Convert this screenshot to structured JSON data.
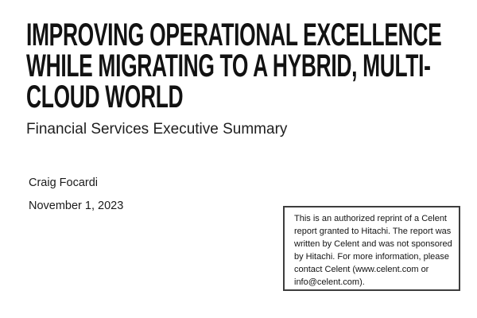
{
  "document": {
    "title": "IMPROVING OPERATIONAL EXCELLENCE WHILE MIGRATING TO A HYBRID, MULTI-CLOUD WORLD",
    "title_lines": "IMPROVING OPERATIONAL EXCELLENCE\nWHILE MIGRATING TO A HYBRID, MULTI-\nCLOUD WORLD",
    "subtitle": "Financial Services Executive Summary",
    "author": "Craig Focardi",
    "date": "November 1, 2023"
  },
  "reprint_box": {
    "text": "This is an authorized reprint of a Celent\nreport granted to Hitachi. The report was\nwritten by Celent and was not sponsored\nby Hitachi. For more information, please\ncontact Celent (www.celent.com or\ninfo@celent.com)."
  },
  "colors": {
    "background": "#ffffff",
    "title_text": "#121212",
    "body_text": "#1a1a1a",
    "box_border": "#3d3d3d"
  }
}
